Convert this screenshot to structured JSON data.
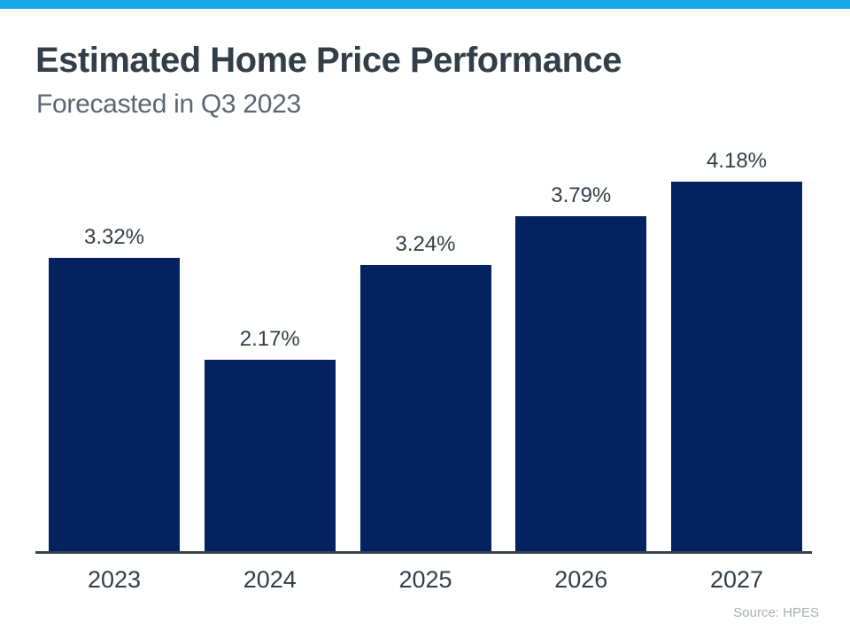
{
  "page": {
    "title": "Estimated Home Price Performance",
    "subtitle": "Forecasted in Q3 2023",
    "source": "Source: HPES"
  },
  "theme": {
    "top_stripe_color": "#18a8e8",
    "bar_color": "#042160",
    "title_color": "#333e48",
    "subtitle_color": "#5b6670",
    "axis_line_color": "#3a444c",
    "label_color": "#333e48",
    "source_color": "#a9aeb3"
  },
  "chart_data": {
    "type": "bar",
    "title": "Estimated Home Price Performance",
    "subtitle": "Forecasted in Q3 2023",
    "categories": [
      "2023",
      "2024",
      "2025",
      "2026",
      "2027"
    ],
    "values": [
      3.32,
      2.17,
      3.24,
      3.79,
      4.18
    ],
    "value_labels": [
      "3.32%",
      "2.17%",
      "3.24%",
      "3.79%",
      "4.18%"
    ],
    "xlabel": "",
    "ylabel": "",
    "ylim": [
      0,
      4.6
    ],
    "grid": false,
    "legend": null,
    "bar_color": "#042160",
    "source": "Source: HPES"
  }
}
